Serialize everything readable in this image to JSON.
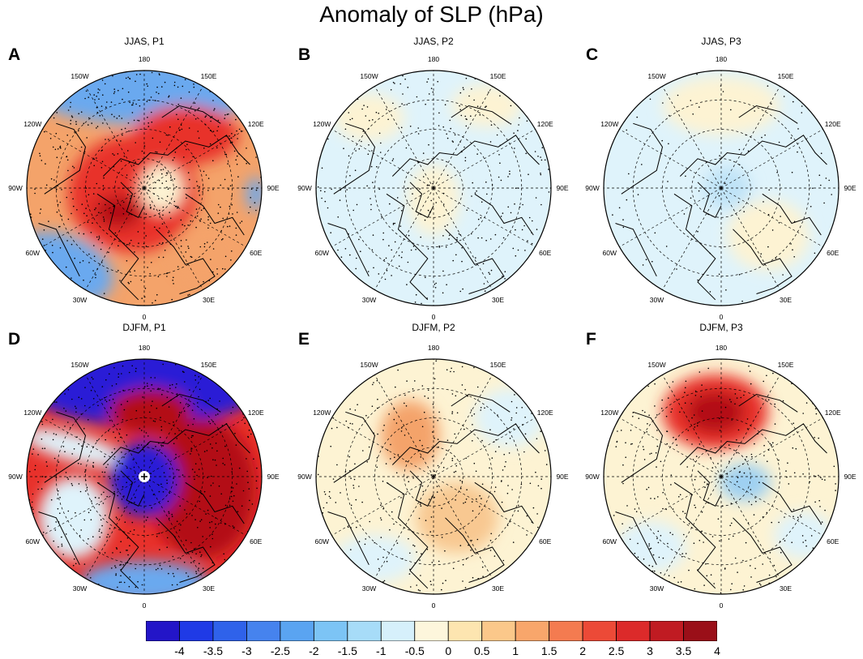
{
  "title": "Anomaly of SLP (hPa)",
  "colors": {
    "strong_blue": "#2b1fd6",
    "blue": "#6aa9ef",
    "light_blue": "#dff3fb",
    "light_yellow": "#fdf3d3",
    "orange": "#f4a36a",
    "red": "#e8312b",
    "dark_red": "#b30d14",
    "coast": "#000000",
    "grid": "#000000"
  },
  "longitude_labels": [
    "180",
    "150E",
    "120E",
    "90E",
    "60E",
    "30E",
    "0",
    "30W",
    "60W",
    "90W",
    "120W",
    "150W"
  ],
  "panels": [
    {
      "letter": "A",
      "title": "JJAS, P1"
    },
    {
      "letter": "B",
      "title": "JJAS, P2"
    },
    {
      "letter": "C",
      "title": "JJAS, P3"
    },
    {
      "letter": "D",
      "title": "DJFM, P1"
    },
    {
      "letter": "E",
      "title": "DJFM, P2"
    },
    {
      "letter": "F",
      "title": "DJFM, P3"
    }
  ],
  "colorbar": {
    "labels": [
      "-4",
      "-3.5",
      "-3",
      "-2.5",
      "-2",
      "-1.5",
      "-1",
      "-0.5",
      "0",
      "0.5",
      "1",
      "1.5",
      "2",
      "2.5",
      "3",
      "3.5",
      "4"
    ],
    "colors": [
      "#2315c8",
      "#1f3ae6",
      "#2f62ea",
      "#4683ee",
      "#5aa4f1",
      "#7cc4f5",
      "#a7dcf8",
      "#d6f0fb",
      "#fdf6dc",
      "#fde5b0",
      "#fbc88a",
      "#f8a66b",
      "#f47b50",
      "#ec4a37",
      "#dc2a2a",
      "#c01b22",
      "#9a0f18"
    ]
  }
}
